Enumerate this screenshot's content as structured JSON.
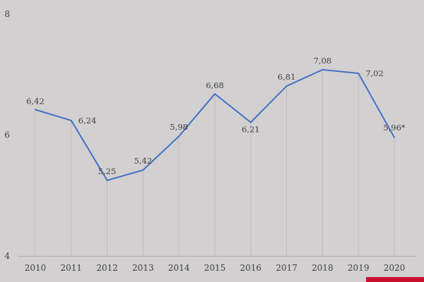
{
  "chart_data": {
    "type": "line",
    "categories": [
      "2010",
      "2011",
      "2012",
      "2013",
      "2014",
      "2015",
      "2016",
      "2017",
      "2018",
      "2019",
      "2020"
    ],
    "series": [
      {
        "values": [
          6.42,
          6.24,
          5.25,
          5.42,
          5.98,
          6.68,
          6.21,
          6.81,
          7.08,
          7.02,
          5.96
        ],
        "labels": [
          "6,42",
          "6,24",
          "5,25",
          "5,42",
          "5,98",
          "6,68",
          "6,21",
          "6,81",
          "7,08",
          "7,02",
          "5,96*"
        ],
        "color": "#4472c4"
      }
    ],
    "ylim": [
      4,
      8
    ],
    "yticks": [
      "4",
      "6",
      "8"
    ],
    "title": "",
    "xlabel": "",
    "ylabel": "",
    "grid": "vertical",
    "legend": "none"
  }
}
